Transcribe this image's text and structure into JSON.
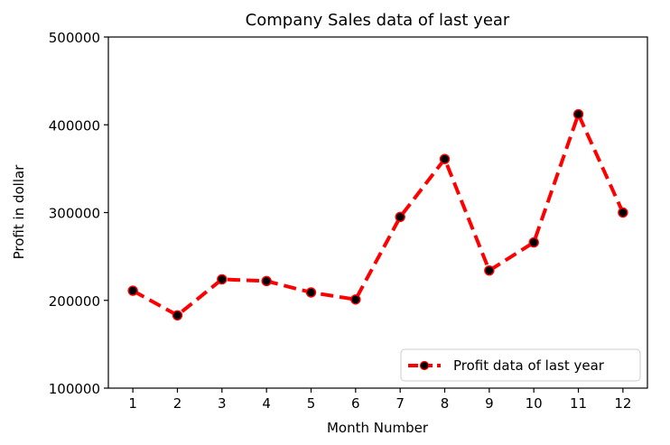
{
  "chart_data": {
    "type": "line",
    "title": "Company Sales data of last year",
    "xlabel": "Month Number",
    "ylabel": "Profit in dollar",
    "x": [
      1,
      2,
      3,
      4,
      5,
      6,
      7,
      8,
      9,
      10,
      11,
      12
    ],
    "x_tick_labels": [
      "1",
      "2",
      "3",
      "4",
      "5",
      "6",
      "7",
      "8",
      "9",
      "10",
      "11",
      "12"
    ],
    "y_tick_labels": [
      "100000",
      "200000",
      "300000",
      "400000",
      "500000"
    ],
    "y_ticks": [
      100000,
      200000,
      300000,
      400000,
      500000
    ],
    "ylim": [
      100000,
      500000
    ],
    "xlim": [
      0.45,
      12.55
    ],
    "series": [
      {
        "name": "Profit data of last year",
        "values": [
          211000,
          183000,
          224000,
          222000,
          209000,
          201000,
          295000,
          361000,
          234000,
          266000,
          412000,
          300000
        ],
        "line_color": "#ff0000",
        "line_style": "dashed",
        "marker": "circle",
        "marker_color": "#000000"
      }
    ],
    "legend_position": "lower-right",
    "grid": false
  }
}
